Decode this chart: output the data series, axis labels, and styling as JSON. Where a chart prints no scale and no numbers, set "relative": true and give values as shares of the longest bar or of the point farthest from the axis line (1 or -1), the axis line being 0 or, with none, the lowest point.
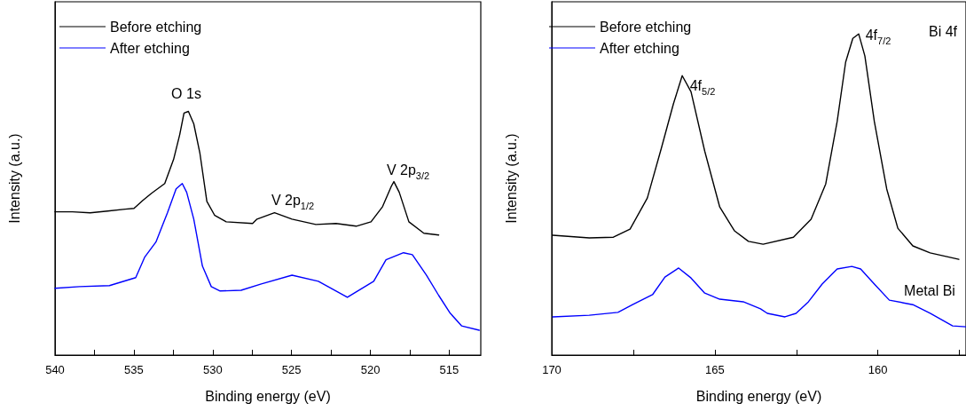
{
  "chart_data": [
    {
      "type": "line",
      "xlabel": "Binding energy (eV)",
      "ylabel": "Intensity (a.u.)",
      "relative": true,
      "legend": "top left",
      "marker": "none",
      "grid": false,
      "xlim": [
        540,
        513
      ],
      "xticks": [
        540,
        {
          "value": 537.5,
          "label": null
        },
        535,
        {
          "value": 532.5,
          "label": null
        },
        530,
        {
          "value": 527.5,
          "label": null
        },
        525,
        {
          "value": 522.5,
          "label": null
        },
        520,
        {
          "value": 517.5,
          "label": null
        },
        515
      ],
      "annotations": [
        "O 1s",
        "V 2p$_{1/2}$",
        "V 2p$_{3/2}$"
      ],
      "series": [
        {
          "name": "Before etching",
          "color": "#000000",
          "x": [
            540.0,
            538.89,
            537.77,
            536.66,
            535.55,
            534.99,
            534.43,
            533.88,
            533.04,
            532.48,
            532.09,
            531.82,
            531.54,
            531.2,
            530.81,
            530.37,
            529.87,
            529.14,
            527.47,
            527.19,
            526.08,
            524.97,
            523.46,
            522.18,
            520.9,
            519.96,
            519.23,
            518.67,
            518.51,
            518.17,
            517.56,
            516.61,
            515.67
          ],
          "values": [
            0.588,
            0.588,
            0.584,
            0.591,
            0.599,
            0.602,
            0.635,
            0.664,
            0.704,
            0.803,
            0.905,
            0.993,
            1.0,
            0.949,
            0.828,
            0.631,
            0.573,
            0.547,
            0.54,
            0.558,
            0.584,
            0.558,
            0.536,
            0.54,
            0.529,
            0.547,
            0.609,
            0.693,
            0.712,
            0.668,
            0.547,
            0.5,
            0.493
          ]
        },
        {
          "name": "After etching",
          "color": "#0000ff",
          "x": [
            540.0,
            538.44,
            536.55,
            534.88,
            534.32,
            533.6,
            532.87,
            532.32,
            531.93,
            531.65,
            531.2,
            530.65,
            530.09,
            529.53,
            528.2,
            526.92,
            524.97,
            523.3,
            521.46,
            519.79,
            519.01,
            517.9,
            517.34,
            516.45,
            515.67,
            514.94,
            514.22,
            513.1
          ],
          "values": [
            0.274,
            0.281,
            0.285,
            0.318,
            0.401,
            0.464,
            0.584,
            0.682,
            0.704,
            0.668,
            0.558,
            0.365,
            0.281,
            0.263,
            0.266,
            0.292,
            0.328,
            0.303,
            0.237,
            0.303,
            0.391,
            0.42,
            0.412,
            0.328,
            0.245,
            0.172,
            0.12,
            0.102
          ]
        }
      ]
    },
    {
      "type": "line",
      "xlabel": "Binding energy (eV)",
      "ylabel": "Intensity (a.u.)",
      "relative": true,
      "legend": "top left",
      "marker": "none",
      "grid": false,
      "xlim": [
        170,
        157.3
      ],
      "xticks": [
        170,
        {
          "value": 167.5,
          "label": null
        },
        165,
        {
          "value": 162.5,
          "label": null
        },
        160,
        {
          "value": 157.5,
          "label": null
        }
      ],
      "annotations": [
        "4f$_{5/2}$",
        "4f$_{7/2}$",
        "Bi 4f",
        "Metal Bi"
      ],
      "series": [
        {
          "name": "Before etching",
          "color": "#000000",
          "x": [
            169.97,
            168.85,
            168.11,
            167.6,
            167.07,
            166.64,
            166.27,
            166.0,
            165.73,
            165.31,
            164.85,
            164.4,
            163.97,
            163.52,
            162.59,
            162.05,
            161.6,
            161.25,
            160.99,
            160.77,
            160.59,
            160.4,
            160.11,
            159.73,
            159.39,
            158.93,
            158.4,
            157.52
          ],
          "values": [
            0.373,
            0.365,
            0.367,
            0.392,
            0.489,
            0.644,
            0.782,
            0.87,
            0.82,
            0.635,
            0.461,
            0.387,
            0.354,
            0.345,
            0.367,
            0.423,
            0.533,
            0.727,
            0.912,
            0.986,
            1.0,
            0.931,
            0.727,
            0.517,
            0.395,
            0.34,
            0.318,
            0.298
          ]
        },
        {
          "name": "After etching",
          "color": "#0000ff",
          "x": [
            169.97,
            168.85,
            167.97,
            167.52,
            166.91,
            166.53,
            166.11,
            165.73,
            165.31,
            164.85,
            164.13,
            163.6,
            163.39,
            162.85,
            162.51,
            162.13,
            161.71,
            161.25,
            160.8,
            160.53,
            160.11,
            159.65,
            158.93,
            158.4,
            157.71,
            157.31
          ],
          "values": [
            0.119,
            0.124,
            0.133,
            0.157,
            0.188,
            0.243,
            0.271,
            0.24,
            0.193,
            0.174,
            0.166,
            0.144,
            0.13,
            0.119,
            0.13,
            0.166,
            0.221,
            0.268,
            0.276,
            0.268,
            0.221,
            0.171,
            0.157,
            0.13,
            0.091,
            0.088
          ]
        }
      ]
    }
  ]
}
